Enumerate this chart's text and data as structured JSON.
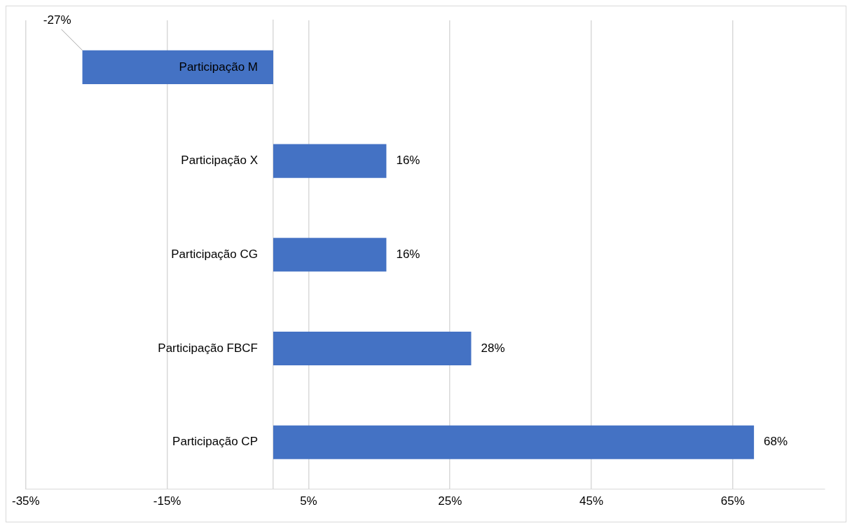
{
  "chart_data": {
    "type": "bar",
    "orientation": "horizontal",
    "categories": [
      "Participação M",
      "Participação X",
      "Participação CG",
      "Participação FBCF",
      "Participação CP"
    ],
    "values": [
      -27,
      16,
      16,
      28,
      68
    ],
    "value_labels": [
      "-27%",
      "16%",
      "16%",
      "28%",
      "68%"
    ],
    "color": "#4472c4",
    "xlim": [
      -35,
      78
    ],
    "xticks": [
      {
        "value": -35,
        "label": "-35%"
      },
      {
        "value": -15,
        "label": "-15%"
      },
      {
        "value": 5,
        "label": "5%"
      },
      {
        "value": 25,
        "label": "25%"
      },
      {
        "value": 45,
        "label": "45%"
      },
      {
        "value": 65,
        "label": "65%"
      }
    ],
    "grid": "x",
    "legend": false
  }
}
